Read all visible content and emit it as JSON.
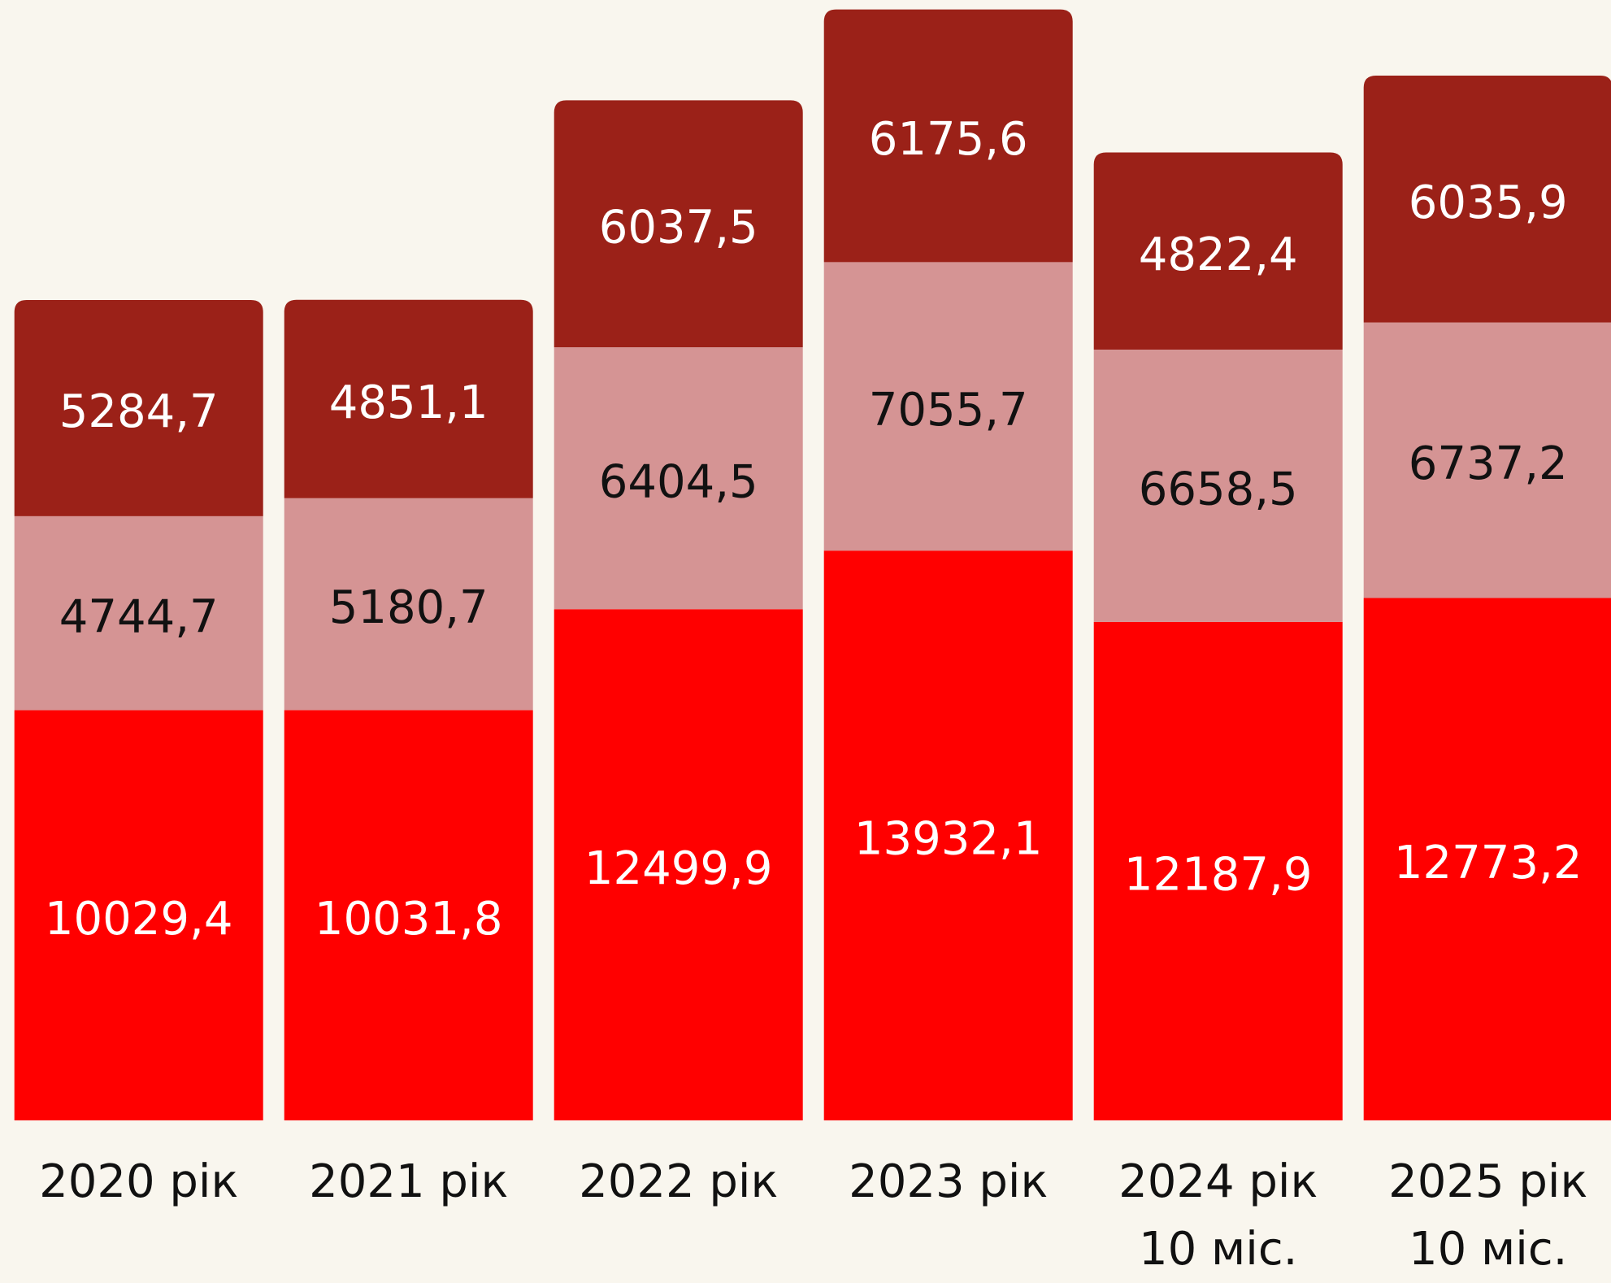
{
  "chart_data": {
    "type": "stacked_bar",
    "categories": [
      "2020 рік",
      "2021 рік",
      "2022 рік",
      "2023 рік",
      "2024 рік\n10 міс.",
      "2025 рік\n10 міс."
    ],
    "series": [
      {
        "color": "#ff0000",
        "label_color": "#ffffff",
        "values": [
          10029.4,
          10031.8,
          12499.9,
          13932.1,
          12187.9,
          12773.2
        ],
        "value_labels": [
          "10029,4",
          "10031,8",
          "12499,9",
          "13932,1",
          "12187,9",
          "12773,2"
        ]
      },
      {
        "color": "#d59494",
        "label_color": "#111111",
        "values": [
          4744.7,
          5180.7,
          6404.5,
          7055.7,
          6658.5,
          6737.2
        ],
        "value_labels": [
          "4744,7",
          "5180,7",
          "6404,5",
          "7055,7",
          "6658,5",
          "6737,2"
        ]
      },
      {
        "color": "#9b2118",
        "label_color": "#ffffff",
        "values": [
          5284.7,
          4851.1,
          6037.5,
          6175.6,
          4822.4,
          6035.9
        ],
        "value_labels": [
          "5284,7",
          "4851,1",
          "6037,5",
          "6175,6",
          "4822,4",
          "6035,9"
        ]
      }
    ]
  }
}
